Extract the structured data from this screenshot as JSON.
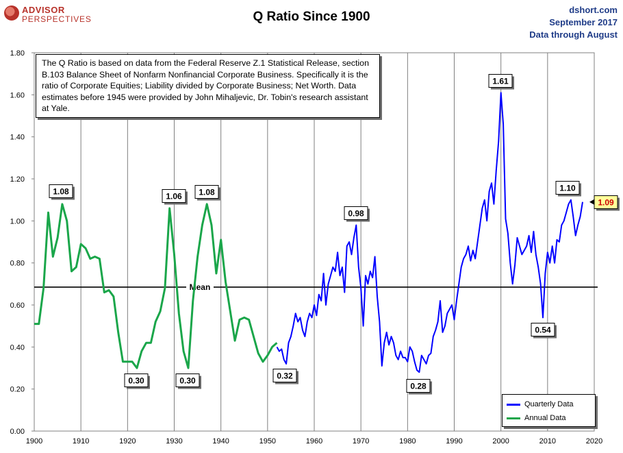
{
  "header": {
    "logo_line1": "ADVISOR",
    "logo_line2": "PERSPECTIVES",
    "title": "Q Ratio Since 1900",
    "source_site": "dshort.com",
    "source_date": "September 2017",
    "source_through": "Data through August"
  },
  "info_text": "The Q Ratio is based on data from the Federal Reserve Z.1 Statistical Release, section B.103 Balance Sheet of Nonfarm Nonfinancial Corporate Business. Specifically it is the ratio of Corporate Equities; Liability divided by Corporate Business; Net Worth. Data estimates before 1945 were provided by John Mihaljevic, Dr. Tobin's research assistant at Yale.",
  "legend": {
    "quarterly_label": "Quarterly Data",
    "annual_label": "Annual Data",
    "quarterly_color": "#0000ff",
    "annual_color": "#1aa64a"
  },
  "chart_data": {
    "type": "line",
    "title": "Q Ratio Since 1900",
    "xlim": [
      1900,
      2020
    ],
    "ylim": [
      0.0,
      1.8
    ],
    "x_ticks": [
      "1900",
      "1910",
      "1920",
      "1930",
      "1940",
      "1950",
      "1960",
      "1970",
      "1980",
      "1990",
      "2000",
      "2010",
      "2020"
    ],
    "y_ticks": [
      "0.00",
      "0.20",
      "0.40",
      "0.60",
      "0.80",
      "1.00",
      "1.20",
      "1.40",
      "1.60",
      "1.80"
    ],
    "grid": "vertical",
    "legend_position": "bottom-right",
    "mean": {
      "label": "Mean",
      "value": 0.685
    },
    "series": [
      {
        "name": "Annual Data",
        "color": "#1aa64a",
        "x": [
          1900,
          1901,
          1902,
          1903,
          1904,
          1905,
          1906,
          1907,
          1908,
          1909,
          1910,
          1911,
          1912,
          1913,
          1914,
          1915,
          1916,
          1917,
          1918,
          1919,
          1920,
          1921,
          1922,
          1923,
          1924,
          1925,
          1926,
          1927,
          1928,
          1929,
          1930,
          1931,
          1932,
          1933,
          1934,
          1935,
          1936,
          1937,
          1938,
          1939,
          1940,
          1941,
          1942,
          1943,
          1944,
          1945,
          1946,
          1947,
          1948,
          1949,
          1950,
          1951,
          1952
        ],
        "y": [
          0.51,
          0.51,
          0.68,
          1.04,
          0.83,
          0.92,
          1.08,
          1.0,
          0.76,
          0.78,
          0.89,
          0.87,
          0.82,
          0.83,
          0.82,
          0.66,
          0.67,
          0.64,
          0.47,
          0.33,
          0.33,
          0.33,
          0.3,
          0.38,
          0.42,
          0.42,
          0.52,
          0.57,
          0.68,
          1.06,
          0.84,
          0.56,
          0.38,
          0.3,
          0.62,
          0.83,
          0.98,
          1.08,
          0.98,
          0.75,
          0.91,
          0.71,
          0.57,
          0.43,
          0.53,
          0.54,
          0.53,
          0.45,
          0.37,
          0.33,
          0.36,
          0.4,
          0.42
        ]
      },
      {
        "name": "Quarterly Data",
        "color": "#0000ff",
        "x": [
          1952.0,
          1952.5,
          1953.0,
          1953.5,
          1954.0,
          1954.5,
          1955.0,
          1955.5,
          1956.0,
          1956.5,
          1957.0,
          1957.5,
          1958.0,
          1958.5,
          1959.0,
          1959.5,
          1960.0,
          1960.5,
          1961.0,
          1961.5,
          1962.0,
          1962.5,
          1963.0,
          1963.5,
          1964.0,
          1964.5,
          1965.0,
          1965.5,
          1966.0,
          1966.5,
          1967.0,
          1967.5,
          1968.0,
          1968.5,
          1969.0,
          1969.5,
          1970.0,
          1970.5,
          1971.0,
          1971.5,
          1972.0,
          1972.5,
          1973.0,
          1973.5,
          1974.0,
          1974.5,
          1975.0,
          1975.5,
          1976.0,
          1976.5,
          1977.0,
          1977.5,
          1978.0,
          1978.5,
          1979.0,
          1979.5,
          1980.0,
          1980.5,
          1981.0,
          1981.5,
          1982.0,
          1982.5,
          1983.0,
          1983.5,
          1984.0,
          1984.5,
          1985.0,
          1985.5,
          1986.0,
          1986.5,
          1987.0,
          1987.5,
          1988.0,
          1988.5,
          1989.0,
          1989.5,
          1990.0,
          1990.5,
          1991.0,
          1991.5,
          1992.0,
          1992.5,
          1993.0,
          1993.5,
          1994.0,
          1994.5,
          1995.0,
          1995.5,
          1996.0,
          1996.5,
          1997.0,
          1997.5,
          1998.0,
          1998.5,
          1999.0,
          1999.5,
          2000.0,
          2000.5,
          2001.0,
          2001.5,
          2002.0,
          2002.5,
          2003.0,
          2003.5,
          2004.0,
          2004.5,
          2005.0,
          2005.5,
          2006.0,
          2006.5,
          2007.0,
          2007.5,
          2008.0,
          2008.5,
          2009.0,
          2009.5,
          2010.0,
          2010.5,
          2011.0,
          2011.5,
          2012.0,
          2012.5,
          2013.0,
          2013.5,
          2014.0,
          2014.5,
          2015.0,
          2015.5,
          2016.0,
          2016.5,
          2017.0,
          2017.5
        ],
        "y": [
          0.4,
          0.38,
          0.39,
          0.34,
          0.32,
          0.42,
          0.45,
          0.5,
          0.56,
          0.52,
          0.54,
          0.48,
          0.45,
          0.52,
          0.56,
          0.54,
          0.6,
          0.55,
          0.65,
          0.62,
          0.75,
          0.6,
          0.7,
          0.74,
          0.78,
          0.76,
          0.85,
          0.74,
          0.78,
          0.66,
          0.88,
          0.9,
          0.84,
          0.92,
          0.98,
          0.78,
          0.68,
          0.5,
          0.74,
          0.7,
          0.76,
          0.73,
          0.83,
          0.64,
          0.52,
          0.31,
          0.42,
          0.47,
          0.41,
          0.45,
          0.42,
          0.36,
          0.34,
          0.38,
          0.35,
          0.35,
          0.33,
          0.4,
          0.38,
          0.33,
          0.29,
          0.28,
          0.36,
          0.34,
          0.32,
          0.36,
          0.37,
          0.45,
          0.48,
          0.52,
          0.62,
          0.47,
          0.5,
          0.56,
          0.58,
          0.6,
          0.53,
          0.62,
          0.7,
          0.78,
          0.82,
          0.84,
          0.88,
          0.81,
          0.86,
          0.82,
          0.9,
          0.98,
          1.06,
          1.1,
          1.0,
          1.14,
          1.18,
          1.08,
          1.24,
          1.38,
          1.61,
          1.46,
          1.01,
          0.94,
          0.8,
          0.7,
          0.79,
          0.92,
          0.88,
          0.84,
          0.86,
          0.88,
          0.93,
          0.85,
          0.95,
          0.84,
          0.78,
          0.7,
          0.54,
          0.75,
          0.85,
          0.8,
          0.88,
          0.8,
          0.91,
          0.9,
          0.98,
          1.0,
          1.04,
          1.08,
          1.1,
          1.02,
          0.93,
          0.98,
          1.02,
          1.09
        ]
      }
    ],
    "annotations": [
      {
        "text": "1.08",
        "x": 1906,
        "y": 1.08
      },
      {
        "text": "0.30",
        "x": 1922,
        "y": 0.3
      },
      {
        "text": "1.06",
        "x": 1929,
        "y": 1.06
      },
      {
        "text": "0.30",
        "x": 1933,
        "y": 0.3
      },
      {
        "text": "1.08",
        "x": 1937,
        "y": 1.08
      },
      {
        "text": "0.32",
        "x": 1954,
        "y": 0.32
      },
      {
        "text": "0.98",
        "x": 1969,
        "y": 0.98
      },
      {
        "text": "0.28",
        "x": 1982.5,
        "y": 0.28
      },
      {
        "text": "1.61",
        "x": 2000,
        "y": 1.61
      },
      {
        "text": "0.54",
        "x": 2009,
        "y": 0.54
      },
      {
        "text": "1.10",
        "x": 2015,
        "y": 1.1
      },
      {
        "text": "1.09",
        "x": 2017.5,
        "y": 1.09,
        "highlight": "#ffff99",
        "text_color": "#cc0000"
      }
    ]
  }
}
